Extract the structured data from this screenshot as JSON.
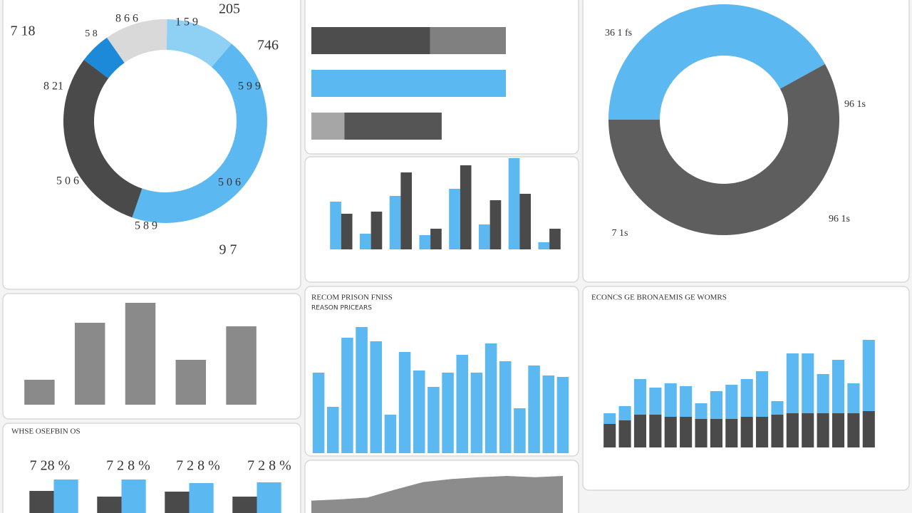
{
  "chart_data": [
    {
      "type": "donut",
      "values": [
        10,
        11,
        44,
        30,
        5
      ],
      "colors": [
        "#d9d9d9",
        "#8fd0f5",
        "#5bb8f0",
        "#4a4a4a",
        "#1c8ad8"
      ],
      "annotations": [
        "7 18",
        "205",
        "746",
        "8 6 6",
        "1 5 9",
        "5 8",
        "8 21",
        "5 9 9",
        "5 0 6",
        "5 0 6",
        "5 8 9",
        "9 7"
      ]
    },
    {
      "type": "hbar",
      "stacked": true,
      "xlim": [
        0,
        100
      ],
      "series": [
        {
          "colors": [
            "#4d4d4d",
            "#5bb8f0",
            "#a6a6a6"
          ],
          "values": [
            61,
            100,
            17
          ]
        },
        {
          "colors": [
            "#808080",
            "#808080",
            "#555555"
          ],
          "values": [
            39,
            null,
            50
          ]
        }
      ]
    },
    {
      "type": "bar",
      "ylim": [
        0,
        130
      ],
      "series": [
        {
          "color": "#5bb8f0",
          "values": [
            67,
            22,
            75,
            20,
            85,
            35,
            128,
            10
          ]
        },
        {
          "color": "#4a4a4a",
          "values": [
            50,
            53,
            108,
            29,
            118,
            69,
            78,
            29
          ]
        }
      ]
    },
    {
      "type": "donut",
      "values": [
        42,
        58
      ],
      "colors": [
        "#5bb8f0",
        "#5e5e5e"
      ],
      "annotations": [
        "36 1 fs",
        "96 1s",
        "7 1s",
        "96 1s"
      ]
    },
    {
      "type": "bar",
      "ylim": [
        0,
        150
      ],
      "series": [
        {
          "color": "#8a8a8a",
          "values": [
            35,
            115,
            143,
            63,
            110
          ]
        }
      ]
    },
    {
      "type": "bar",
      "title": "WHSE OSEFBIN OS",
      "ylim": [
        0,
        50
      ],
      "annotations": [
        "7 28 %",
        "7 2 8 %",
        "7 2 8 %",
        "7 2 8 %"
      ],
      "series": [
        {
          "color": "#4a4a4a",
          "values": [
            31,
            23,
            30,
            23
          ]
        },
        {
          "color": "#5bb8f0",
          "values": [
            47,
            47,
            42,
            43
          ]
        }
      ]
    },
    {
      "type": "bar",
      "title": "RECOM PRISON FNISS",
      "subtitle": "REASON PRICEARS",
      "ylim": [
        0,
        180
      ],
      "series": [
        {
          "color": "#5bb8f0",
          "values": [
            113,
            65,
            162,
            177,
            157,
            54,
            142,
            116,
            93,
            113,
            138,
            113,
            154,
            129,
            63,
            123,
            109,
            107
          ]
        }
      ]
    },
    {
      "type": "area",
      "ylim": [
        0,
        75
      ],
      "series": [
        {
          "color": "#8c8c8c",
          "values": [
            20,
            22,
            25,
            38,
            50,
            55,
            58,
            60,
            58,
            60
          ]
        }
      ]
    },
    {
      "type": "bar",
      "stacked": true,
      "title": "ECONCS GE BRONAEMIS GE WOMRS",
      "ylim": [
        0,
        170
      ],
      "series": [
        {
          "color": "#4a4a4a",
          "values": [
            33,
            38,
            46,
            46,
            43,
            43,
            40,
            40,
            40,
            43,
            43,
            46,
            48,
            48,
            48,
            48,
            48,
            51
          ]
        },
        {
          "color": "#5bb8f0",
          "values": [
            15,
            20,
            50,
            38,
            47,
            43,
            22,
            39,
            48,
            53,
            64,
            19,
            84,
            84,
            55,
            75,
            42,
            100
          ]
        }
      ]
    }
  ]
}
